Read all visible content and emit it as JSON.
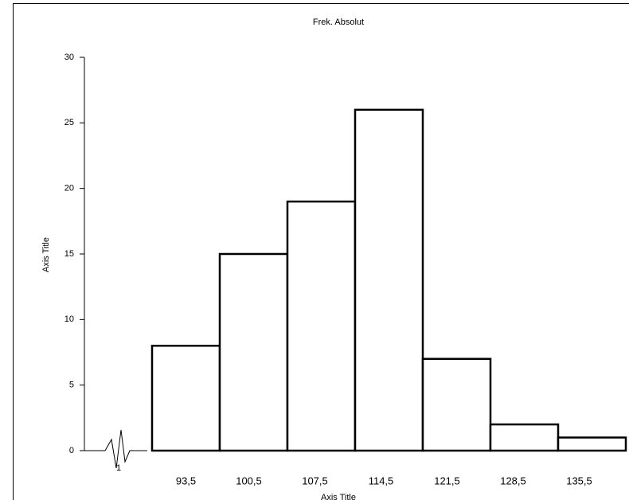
{
  "chart_data": {
    "type": "bar",
    "title": "Frek. Absolut",
    "y_axis_title": "Axis Title",
    "x_axis_title": "Axis Title",
    "axis_break_label": "1",
    "categories": [
      "93,5",
      "100,5",
      "107,5",
      "114,5",
      "121,5",
      "128,5",
      "135,5"
    ],
    "values": [
      8,
      15,
      19,
      26,
      7,
      2,
      1
    ],
    "color": "#ffffff",
    "edgecolor": "#000000",
    "ylim": [
      0,
      30
    ],
    "yticks": [
      0,
      5,
      10,
      15,
      20,
      25,
      30
    ],
    "grid": false
  }
}
